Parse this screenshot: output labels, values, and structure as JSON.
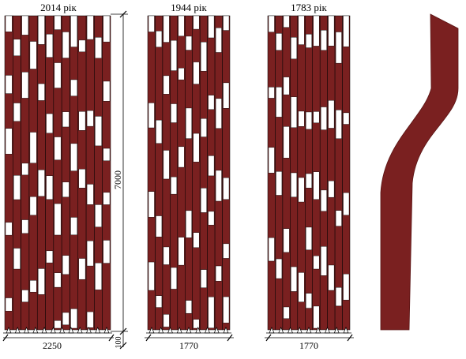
{
  "panels": [
    {
      "title": "2014 рік",
      "width_label": "2250",
      "columns": 13,
      "seed": 11
    },
    {
      "title": "1944 рік",
      "width_label": "1770",
      "columns": 11,
      "seed": 29
    },
    {
      "title": "1783 рік",
      "width_label": "1770",
      "columns": 11,
      "seed": 47
    }
  ],
  "height_label": "7000",
  "base_label": "100",
  "colors": {
    "plank": "#7a2020",
    "gap": "#ffffff",
    "line": "#000000"
  },
  "icons": {
    "support": "triangle-support-icon",
    "profile": "deflection-profile-shape"
  }
}
